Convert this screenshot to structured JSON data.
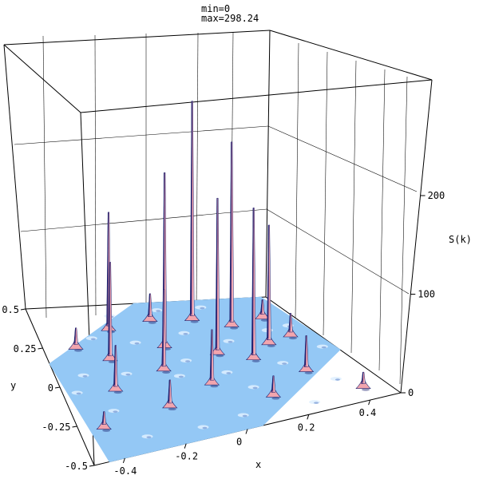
{
  "chart_data": {
    "type": "surface3d",
    "stats": {
      "min_label": "min=0",
      "max_label": "max=298.24"
    },
    "xlabel": "x",
    "ylabel": "y",
    "zlabel": "S(k)",
    "xlim": [
      -0.5,
      0.5
    ],
    "ylim": [
      -0.5,
      0.5
    ],
    "zlim": [
      0,
      298.24
    ],
    "x_ticks": [
      {
        "value": -0.4,
        "label": "-0.4"
      },
      {
        "value": -0.2,
        "label": "-0.2"
      },
      {
        "value": 0,
        "label": "0"
      },
      {
        "value": 0.2,
        "label": "0.2"
      },
      {
        "value": 0.4,
        "label": "0.4"
      }
    ],
    "y_ticks": [
      {
        "value": -0.5,
        "label": "-0.5"
      },
      {
        "value": -0.25,
        "label": "-0.25"
      },
      {
        "value": 0,
        "label": "0"
      },
      {
        "value": 0.25,
        "label": "0.25"
      },
      {
        "value": 0.5,
        "label": "0.5"
      }
    ],
    "z_ticks": [
      {
        "value": 0,
        "label": "0"
      },
      {
        "value": 100,
        "label": "100"
      },
      {
        "value": 200,
        "label": "200"
      }
    ],
    "base_surface": {
      "shape": "hexagon",
      "outline": [
        [
          -0.5,
          0.15
        ],
        [
          -0.45,
          -0.5
        ],
        [
          0.05,
          -0.5
        ],
        [
          0.5,
          -0.05
        ],
        [
          0.48,
          0.5
        ],
        [
          -0.05,
          0.5
        ]
      ]
    },
    "colors": {
      "base": "#94c8f5",
      "peak_dark": "#1a1f6e",
      "peak_light": "#f2a5ae",
      "peak_mid": "#c97a9e",
      "highlight": "#ffffff",
      "frame": "#000000"
    },
    "peaks": [
      {
        "x": 0.12,
        "y": 0.34,
        "z": 298.24
      },
      {
        "x": -0.22,
        "y": 0.32,
        "z": 160
      },
      {
        "x": 0.24,
        "y": 0.26,
        "z": 245
      },
      {
        "x": -0.06,
        "y": 0.16,
        "z": 225
      },
      {
        "x": 0.3,
        "y": 0.08,
        "z": 150
      },
      {
        "x": -0.28,
        "y": 0.12,
        "z": 125
      },
      {
        "x": 0.1,
        "y": 0.06,
        "z": 195
      },
      {
        "x": 0.2,
        "y": -0.02,
        "z": 185
      },
      {
        "x": -0.12,
        "y": 0.0,
        "z": 100
      },
      {
        "x": -0.32,
        "y": -0.08,
        "z": 55
      },
      {
        "x": 0.0,
        "y": -0.15,
        "z": 65
      },
      {
        "x": 0.32,
        "y": -0.18,
        "z": 42
      },
      {
        "x": -0.18,
        "y": -0.25,
        "z": 32
      },
      {
        "x": -0.04,
        "y": 0.36,
        "z": 38
      },
      {
        "x": 0.38,
        "y": 0.3,
        "z": 26
      },
      {
        "x": 0.4,
        "y": 0.12,
        "z": 30
      },
      {
        "x": -0.38,
        "y": 0.22,
        "z": 28
      },
      {
        "x": 0.15,
        "y": -0.32,
        "z": 24
      },
      {
        "x": -0.42,
        "y": -0.3,
        "z": 20
      },
      {
        "x": 0.42,
        "y": -0.4,
        "z": 18
      }
    ],
    "bumps": [
      {
        "x": -0.45,
        "y": -0.05
      },
      {
        "x": -0.4,
        "y": 0.05
      },
      {
        "x": -0.3,
        "y": 0.28
      },
      {
        "x": -0.18,
        "y": 0.42
      },
      {
        "x": 0.02,
        "y": 0.44
      },
      {
        "x": 0.2,
        "y": 0.44
      },
      {
        "x": 0.44,
        "y": 0.22
      },
      {
        "x": 0.46,
        "y": 0.0
      },
      {
        "x": 0.38,
        "y": -0.28
      },
      {
        "x": 0.25,
        "y": -0.42
      },
      {
        "x": 0.02,
        "y": -0.4
      },
      {
        "x": -0.12,
        "y": -0.42
      },
      {
        "x": -0.3,
        "y": -0.4
      },
      {
        "x": -0.25,
        "y": 0.02
      },
      {
        "x": 0.05,
        "y": 0.25
      },
      {
        "x": -0.08,
        "y": -0.05
      },
      {
        "x": 0.28,
        "y": -0.08
      },
      {
        "x": 0.12,
        "y": -0.22
      },
      {
        "x": -0.36,
        "y": -0.2
      },
      {
        "x": 0.35,
        "y": 0.2
      },
      {
        "x": -0.15,
        "y": 0.22
      },
      {
        "x": 0.18,
        "y": 0.15
      },
      {
        "x": -0.02,
        "y": 0.05
      },
      {
        "x": 0.08,
        "y": -0.08
      }
    ]
  }
}
